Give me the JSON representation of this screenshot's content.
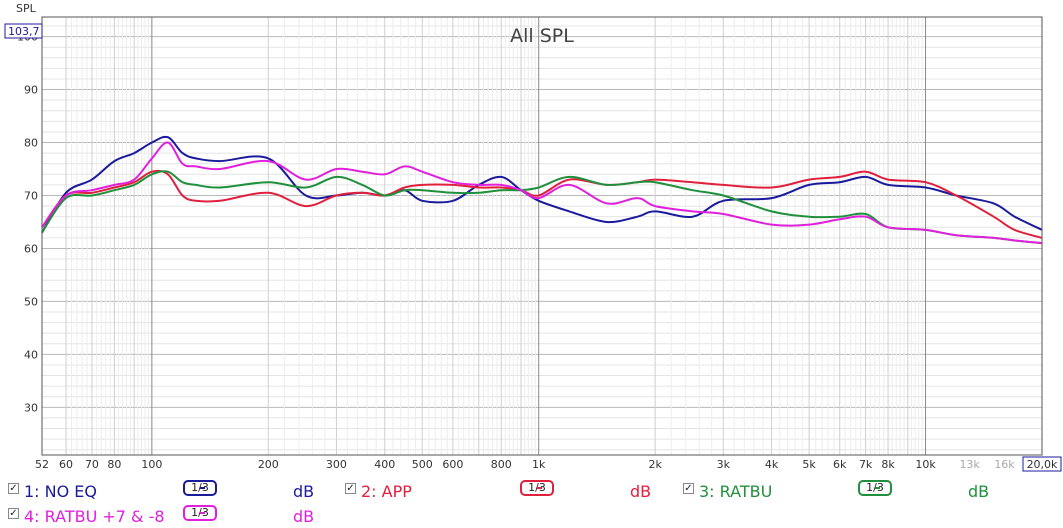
{
  "y_axis_title": "SPL",
  "y_max_label": "103,7",
  "chart_data": {
    "type": "line",
    "title": "All SPL",
    "xscale": "log",
    "xlim": [
      52,
      20000
    ],
    "ylim": [
      21,
      103.7
    ],
    "grid": true,
    "yticks": [
      30,
      40,
      50,
      60,
      70,
      80,
      90,
      100
    ],
    "xticks": [
      {
        "v": 52,
        "label": "52"
      },
      {
        "v": 60,
        "label": "60"
      },
      {
        "v": 70,
        "label": "70"
      },
      {
        "v": 80,
        "label": "80"
      },
      {
        "v": 100,
        "label": "100"
      },
      {
        "v": 200,
        "label": "200"
      },
      {
        "v": 300,
        "label": "300"
      },
      {
        "v": 400,
        "label": "400"
      },
      {
        "v": 500,
        "label": "500"
      },
      {
        "v": 600,
        "label": "600"
      },
      {
        "v": 800,
        "label": "800"
      },
      {
        "v": 1000,
        "label": "1k"
      },
      {
        "v": 2000,
        "label": "2k"
      },
      {
        "v": 3000,
        "label": "3k"
      },
      {
        "v": 4000,
        "label": "4k"
      },
      {
        "v": 5000,
        "label": "5k"
      },
      {
        "v": 6000,
        "label": "6k"
      },
      {
        "v": 7000,
        "label": "7k"
      },
      {
        "v": 8000,
        "label": "8k"
      },
      {
        "v": 10000,
        "label": "10k"
      },
      {
        "v": 13000,
        "label": "13k",
        "minor": true
      },
      {
        "v": 16000,
        "label": "16k",
        "minor": true
      },
      {
        "v": 20000,
        "label": "20,0k",
        "boxed": true
      }
    ],
    "series": [
      {
        "name": "NO EQ",
        "color": "#1a1a9c",
        "x": [
          52,
          60,
          70,
          80,
          90,
          100,
          110,
          120,
          130,
          150,
          200,
          250,
          300,
          350,
          400,
          450,
          500,
          600,
          700,
          800,
          900,
          1000,
          1200,
          1500,
          1800,
          2000,
          2500,
          3000,
          4000,
          5000,
          6000,
          7000,
          8000,
          10000,
          12000,
          15000,
          17000,
          20000
        ],
        "y": [
          63,
          70.5,
          73,
          76.5,
          78,
          80,
          81,
          78,
          77,
          76.5,
          77,
          70,
          70,
          70.5,
          70,
          71,
          69,
          69,
          72,
          73.5,
          71,
          69,
          67,
          65,
          66,
          67,
          66,
          69,
          69.5,
          72,
          72.5,
          73.5,
          72,
          71.5,
          70,
          68.5,
          66,
          63.5
        ]
      },
      {
        "name": "APP",
        "color": "#e0203c",
        "x": [
          52,
          60,
          70,
          80,
          90,
          100,
          110,
          120,
          130,
          150,
          200,
          250,
          300,
          350,
          400,
          450,
          500,
          600,
          700,
          800,
          900,
          1000,
          1200,
          1500,
          1800,
          2000,
          2500,
          3000,
          4000,
          5000,
          6000,
          7000,
          8000,
          10000,
          12000,
          15000,
          17000,
          20000
        ],
        "y": [
          64,
          70,
          70.5,
          71.5,
          72.5,
          74.5,
          74,
          70,
          69,
          69,
          70.5,
          68,
          70,
          70.5,
          70,
          71.5,
          72,
          72,
          71.5,
          71.5,
          71,
          70,
          73,
          72,
          72.5,
          73,
          72.5,
          72,
          71.5,
          73,
          73.5,
          74.5,
          73,
          72.5,
          70,
          66,
          63.5,
          62
        ]
      },
      {
        "name": "RATBU",
        "color": "#20903c",
        "x": [
          52,
          60,
          70,
          80,
          90,
          100,
          110,
          120,
          130,
          150,
          200,
          250,
          300,
          350,
          400,
          450,
          500,
          600,
          700,
          800,
          900,
          1000,
          1200,
          1500,
          1800,
          2000,
          2500,
          3000,
          4000,
          5000,
          6000,
          7000,
          8000,
          10000,
          12000,
          15000,
          17000,
          20000
        ],
        "y": [
          63,
          69.5,
          70,
          71,
          72,
          74,
          74.5,
          72.5,
          72,
          71.5,
          72.5,
          71.5,
          73.5,
          72,
          70,
          71,
          71,
          70.5,
          70.5,
          71,
          71,
          71.5,
          73.5,
          72,
          72.5,
          72.5,
          71,
          70,
          67,
          66,
          66,
          66.5,
          64,
          63.5,
          62.5,
          62,
          61.5,
          61
        ]
      },
      {
        "name": "RATBU +7 & -8",
        "color": "#e020dc",
        "x": [
          52,
          60,
          70,
          80,
          90,
          100,
          110,
          120,
          130,
          150,
          200,
          250,
          300,
          350,
          400,
          450,
          500,
          600,
          700,
          800,
          900,
          1000,
          1200,
          1500,
          1800,
          2000,
          2500,
          3000,
          4000,
          5000,
          6000,
          7000,
          8000,
          10000,
          12000,
          15000,
          17000,
          20000
        ],
        "y": [
          64,
          70,
          71,
          72,
          73,
          77,
          80,
          76,
          75.5,
          75,
          76.5,
          73,
          75,
          74.5,
          74,
          75.5,
          74.5,
          72.5,
          72,
          72,
          71,
          69.5,
          72,
          68.5,
          69.5,
          68,
          67,
          66.5,
          64.5,
          64.5,
          65.5,
          66,
          64,
          63.5,
          62.5,
          62,
          61.5,
          61
        ]
      }
    ]
  },
  "legend": {
    "smoothing_label": "1/3",
    "unit_label": "dB",
    "checked_mark": "✓",
    "items": [
      {
        "label": "1: NO EQ"
      },
      {
        "label": "2: APP"
      },
      {
        "label": "3: RATBU"
      },
      {
        "label": "4: RATBU +7 & -8"
      }
    ]
  }
}
